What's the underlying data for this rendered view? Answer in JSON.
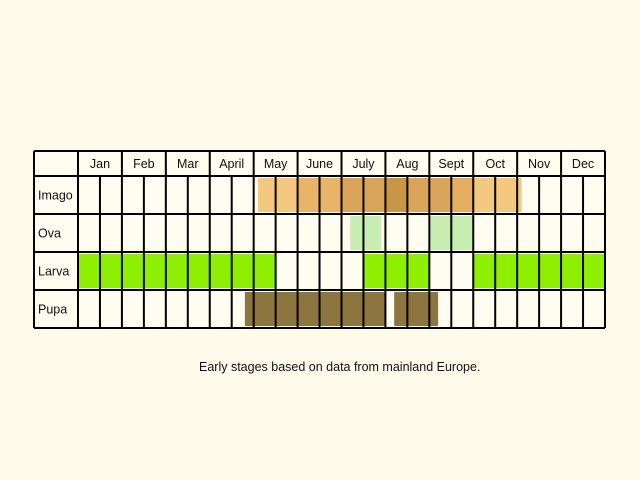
{
  "chart_data": {
    "type": "table",
    "months": [
      "Jan",
      "Feb",
      "Mar",
      "April",
      "May",
      "June",
      "July",
      "Aug",
      "Sept",
      "Oct",
      "Nov",
      "Dec"
    ],
    "stages": [
      {
        "name": "Imago",
        "periods": [
          {
            "start": 4.1,
            "end": 5.0,
            "color": "#f3c87f"
          },
          {
            "start": 5.0,
            "end": 6.0,
            "color": "#e9b468"
          },
          {
            "start": 6.0,
            "end": 7.0,
            "color": "#d9a55b"
          },
          {
            "start": 7.0,
            "end": 7.5,
            "color": "#c89646"
          },
          {
            "start": 7.5,
            "end": 8.5,
            "color": "#d9a55b"
          },
          {
            "start": 8.5,
            "end": 9.0,
            "color": "#e3ae62"
          },
          {
            "start": 9.0,
            "end": 10.1,
            "color": "#f3c87f"
          }
        ]
      },
      {
        "name": "Ova",
        "periods": [
          {
            "start": 6.2,
            "end": 6.9,
            "color": "#c7edb0"
          },
          {
            "start": 8.0,
            "end": 9.0,
            "color": "#c7edb0"
          }
        ]
      },
      {
        "name": "Larva",
        "periods": [
          {
            "start": 0.0,
            "end": 4.5,
            "color": "#8ef000"
          },
          {
            "start": 6.5,
            "end": 8.0,
            "color": "#8ef000"
          },
          {
            "start": 9.0,
            "end": 12.0,
            "color": "#8ef000"
          }
        ]
      },
      {
        "name": "Pupa",
        "periods": [
          {
            "start": 3.8,
            "end": 7.0,
            "color": "#8d753f"
          },
          {
            "start": 7.2,
            "end": 8.2,
            "color": "#8d753f"
          }
        ]
      }
    ],
    "colors": {
      "background": "#fefbeb",
      "cell": "#fffcf0",
      "border": "#000000"
    }
  },
  "caption": "Early stages based on data from mainland Europe."
}
